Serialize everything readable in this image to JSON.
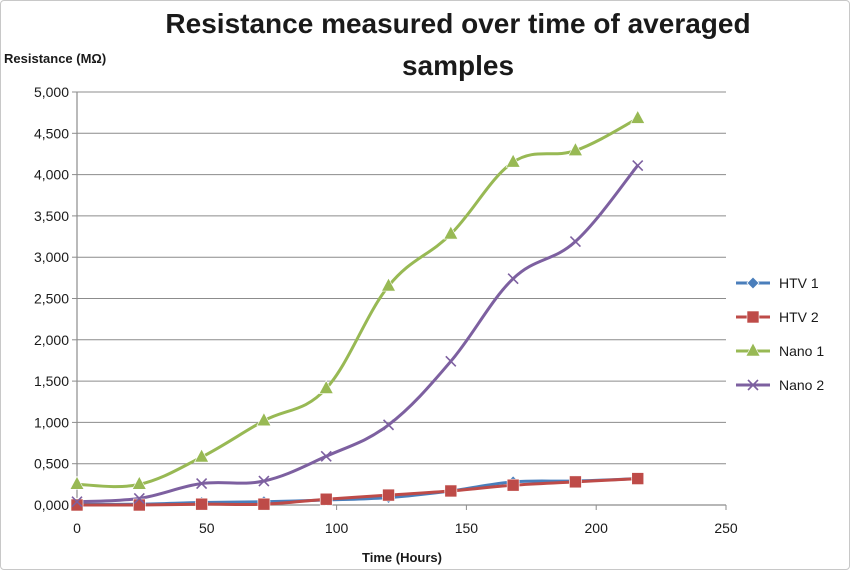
{
  "chart_data": {
    "type": "line",
    "title_line1": "Resistance measured over time of averaged",
    "title_line2": "samples",
    "xlabel": "Time (Hours)",
    "ylabel": "Resistance (MΩ)",
    "xlim": [
      0,
      250
    ],
    "ylim": [
      0,
      5
    ],
    "x_ticks": [
      0,
      50,
      100,
      150,
      200,
      250
    ],
    "x_tick_labels": [
      "0",
      "50",
      "100",
      "150",
      "200",
      "250"
    ],
    "y_ticks": [
      0,
      0.5,
      1,
      1.5,
      2,
      2.5,
      3,
      3.5,
      4,
      4.5,
      5
    ],
    "y_tick_labels": [
      "0,000",
      "0,500",
      "1,000",
      "1,500",
      "2,000",
      "2,500",
      "3,000",
      "3,500",
      "4,000",
      "4,500",
      "5,000"
    ],
    "grid": "horizontal",
    "legend_position": "right",
    "x": [
      0,
      24,
      48,
      72,
      96,
      120,
      144,
      168,
      192,
      216
    ],
    "series": [
      {
        "name": "HTV 1",
        "marker": "diamond",
        "color": "#4a7ebb",
        "values": [
          0.01,
          0.01,
          0.03,
          0.04,
          0.06,
          0.09,
          0.17,
          0.28,
          0.29,
          0.32
        ]
      },
      {
        "name": "HTV 2",
        "marker": "square",
        "color": "#be4b48",
        "values": [
          0.0,
          0.0,
          0.01,
          0.01,
          0.07,
          0.12,
          0.17,
          0.24,
          0.28,
          0.32
        ]
      },
      {
        "name": "Nano 1",
        "marker": "triangle",
        "color": "#98b954",
        "values": [
          0.25,
          0.25,
          0.58,
          1.02,
          1.41,
          2.65,
          3.28,
          4.15,
          4.29,
          4.68
        ]
      },
      {
        "name": "Nano 2",
        "marker": "x",
        "color": "#7d60a0",
        "values": [
          0.04,
          0.08,
          0.26,
          0.29,
          0.59,
          0.97,
          1.74,
          2.74,
          3.19,
          4.11
        ]
      }
    ]
  }
}
